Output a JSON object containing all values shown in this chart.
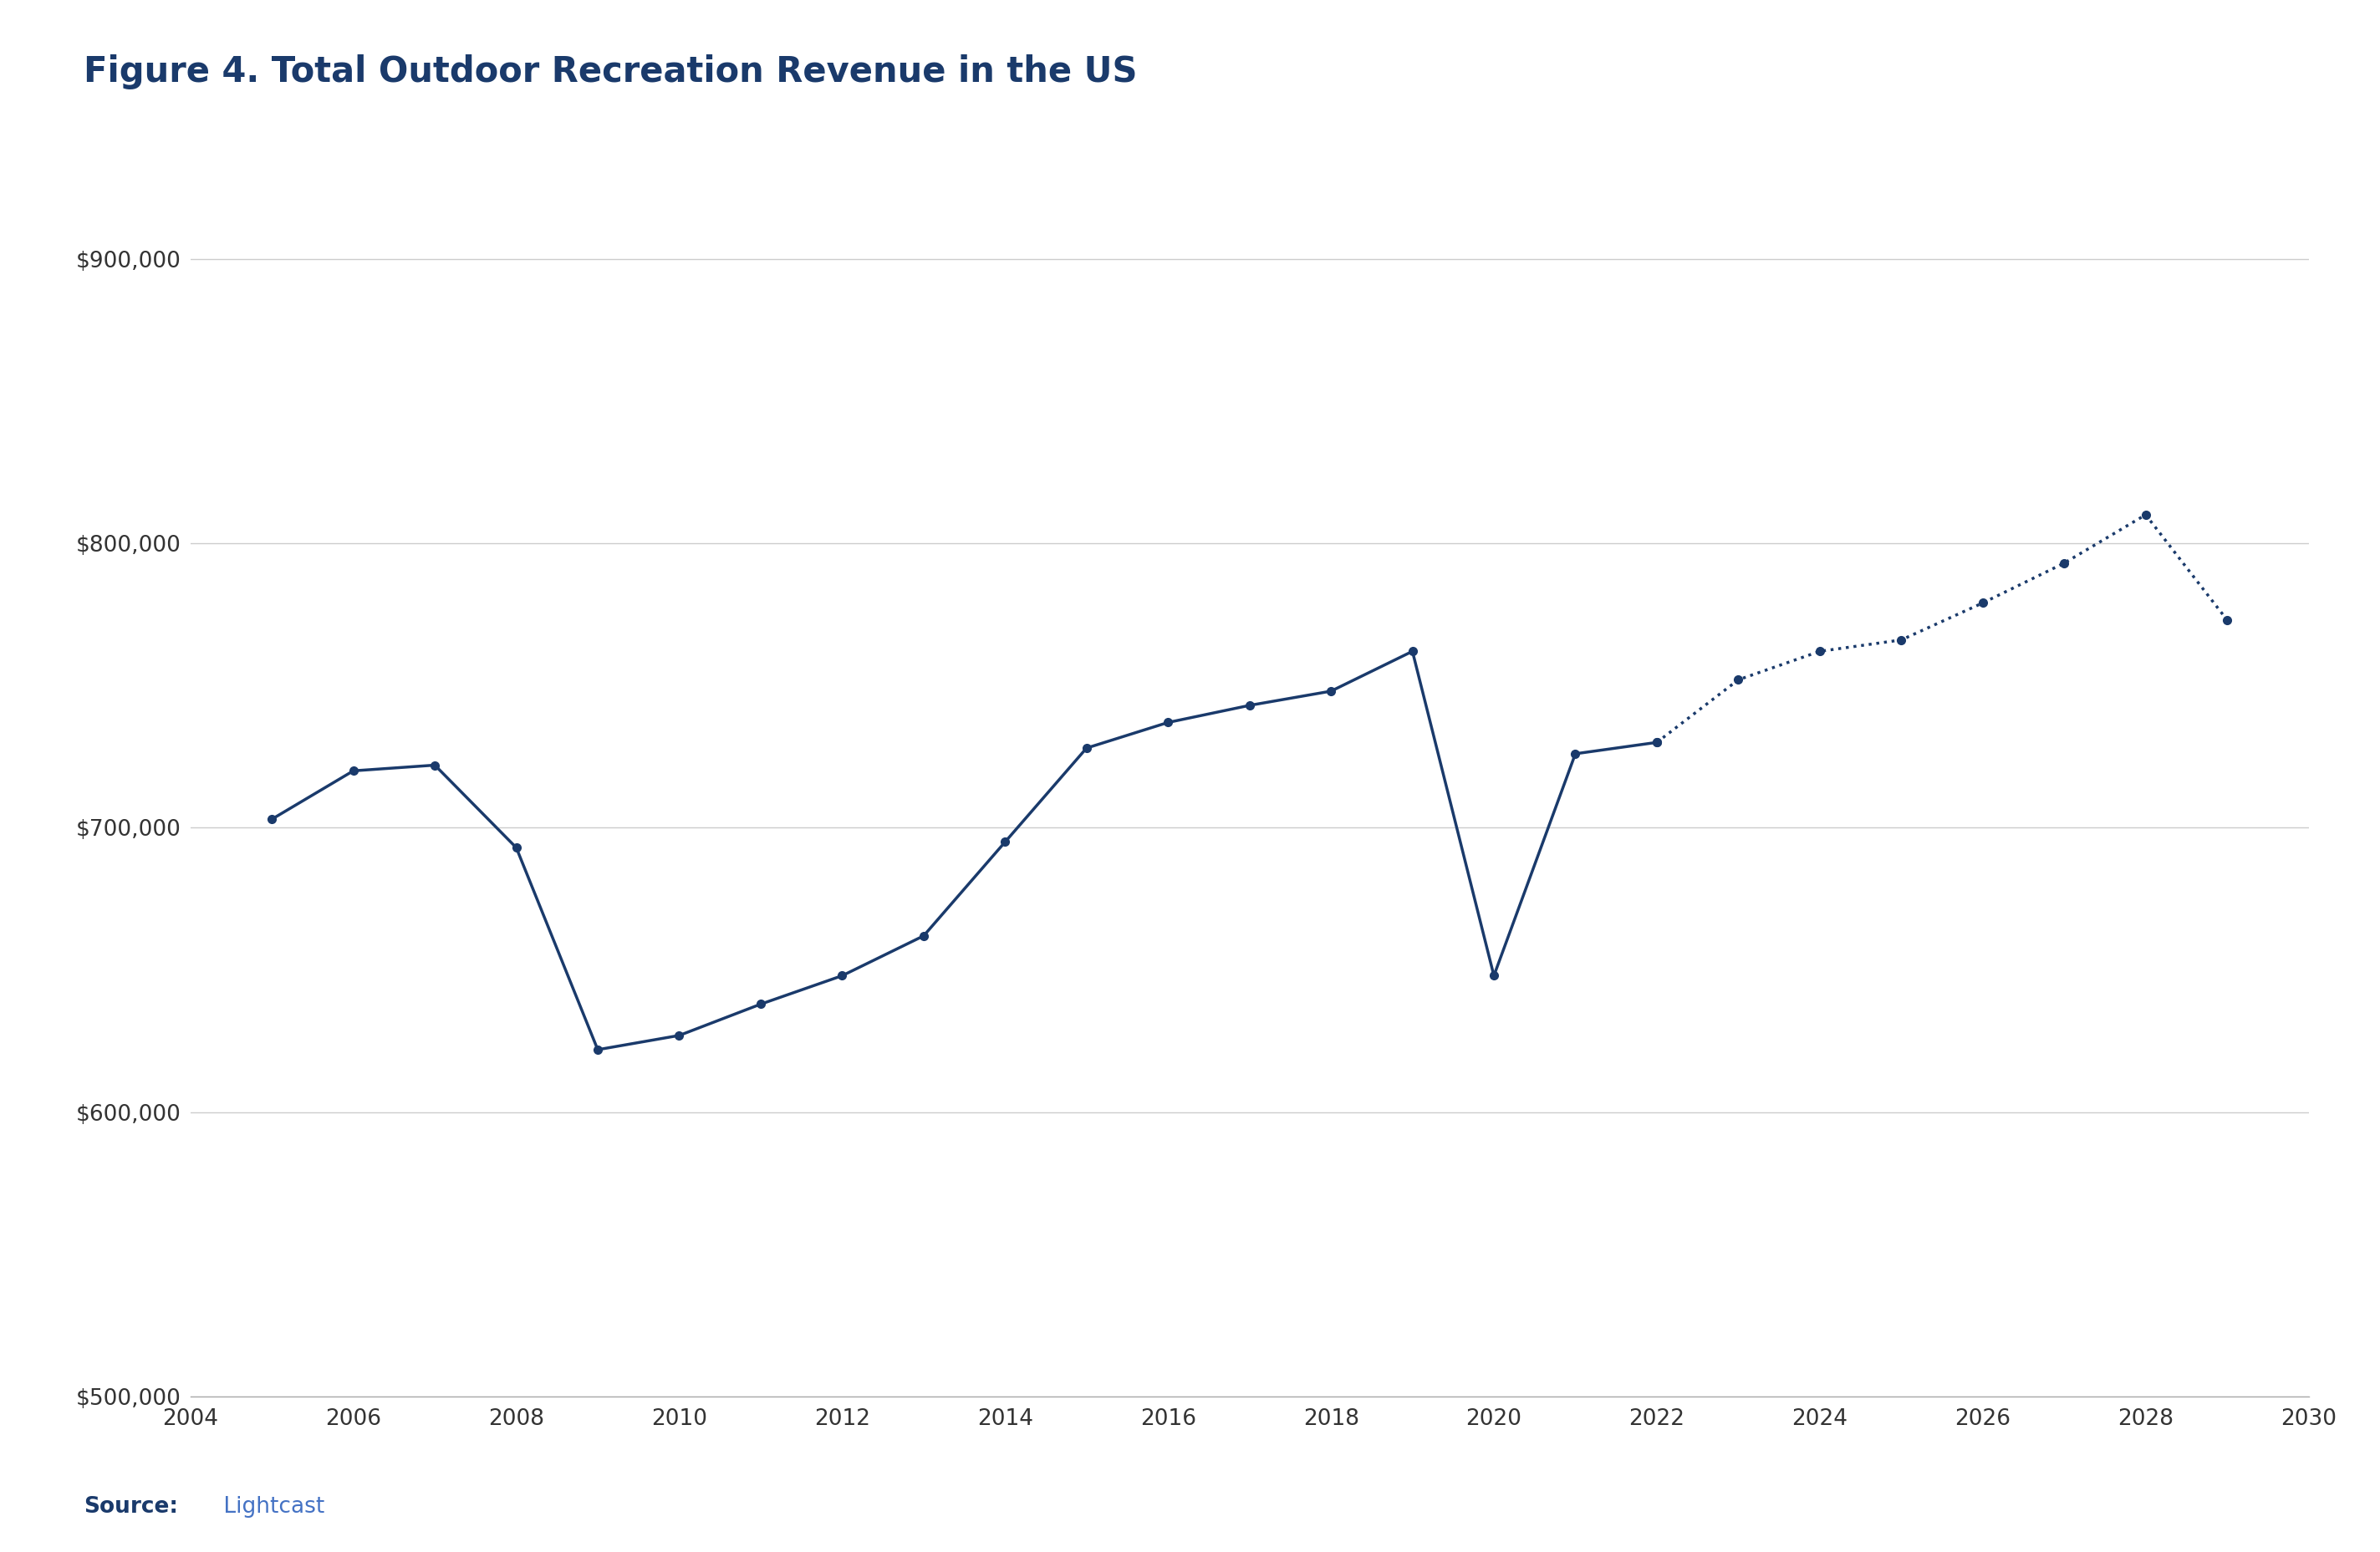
{
  "title": "Figure 4. Total Outdoor Recreation Revenue in the US",
  "source_bold": "Source:",
  "source_light": " Lightcast",
  "line_color": "#1a3a6b",
  "background_color": "#ffffff",
  "grid_color": "#cccccc",
  "title_color": "#1a3a6b",
  "source_bold_color": "#1a3a6b",
  "source_light_color": "#4472c4",
  "solid_years": [
    2005,
    2006,
    2007,
    2008,
    2009,
    2010,
    2011,
    2012,
    2013,
    2014,
    2015,
    2016,
    2017,
    2018,
    2019,
    2020,
    2021,
    2022
  ],
  "solid_values": [
    703000,
    720000,
    722000,
    693000,
    622000,
    627000,
    638000,
    648000,
    662000,
    695000,
    728000,
    737000,
    743000,
    748000,
    762000,
    648000,
    726000,
    730000
  ],
  "dotted_years": [
    2022,
    2023,
    2024,
    2025,
    2026,
    2027,
    2028,
    2029
  ],
  "dotted_values": [
    730000,
    752000,
    762000,
    766000,
    779000,
    793000,
    810000,
    773000
  ],
  "xlim": [
    2004,
    2030
  ],
  "ylim": [
    500000,
    920000
  ],
  "yticks": [
    500000,
    600000,
    700000,
    800000,
    900000
  ],
  "xticks": [
    2004,
    2006,
    2008,
    2010,
    2012,
    2014,
    2016,
    2018,
    2020,
    2022,
    2024,
    2026,
    2028,
    2030
  ],
  "marker_size": 7,
  "line_width": 2.5,
  "title_fontsize": 30,
  "tick_fontsize": 19,
  "source_fontsize": 19
}
